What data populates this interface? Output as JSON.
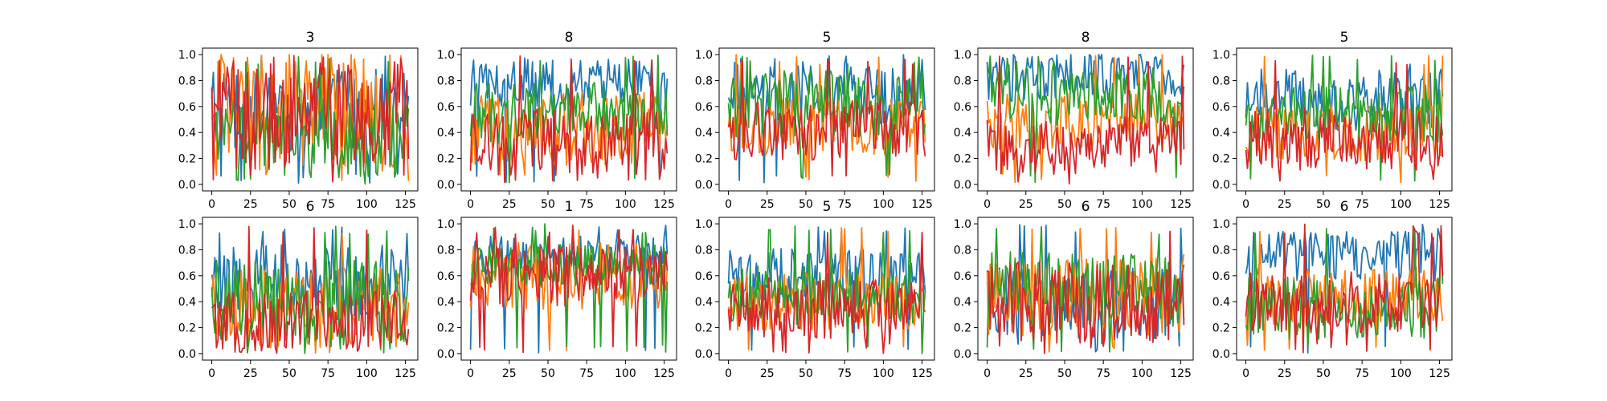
{
  "figure": {
    "background": "#ffffff",
    "panel_count": 10
  },
  "chart_data": [
    {
      "type": "line",
      "title": "3",
      "x_range": [
        0,
        127
      ],
      "xlim": [
        -6,
        133
      ],
      "ylim": [
        -0.05,
        1.05
      ],
      "xticks": [
        0,
        25,
        50,
        75,
        100,
        125
      ],
      "yticks": [
        0.0,
        0.2,
        0.4,
        0.6,
        0.8,
        1.0
      ],
      "ytick_labels": [
        "0.0",
        "0.2",
        "0.4",
        "0.6",
        "0.8",
        "1.0"
      ],
      "series_colors": [
        "#1f77b4",
        "#ff7f0e",
        "#2ca02c",
        "#d62728"
      ],
      "series_levels": [
        {
          "mean": 0.55,
          "spread": 0.22
        },
        {
          "mean": 0.55,
          "spread": 0.3
        },
        {
          "mean": 0.35,
          "spread": 0.2
        },
        {
          "mean": 0.52,
          "spread": 0.26
        }
      ],
      "grid": false,
      "legend": "none"
    },
    {
      "type": "line",
      "title": "8",
      "x_range": [
        0,
        127
      ],
      "xlim": [
        -6,
        133
      ],
      "ylim": [
        -0.05,
        1.05
      ],
      "xticks": [
        0,
        25,
        50,
        75,
        100,
        125
      ],
      "yticks": [
        0.0,
        0.2,
        0.4,
        0.6,
        0.8,
        1.0
      ],
      "ytick_labels": [
        "0.0",
        "0.2",
        "0.4",
        "0.6",
        "0.8",
        "1.0"
      ],
      "series_colors": [
        "#1f77b4",
        "#ff7f0e",
        "#2ca02c",
        "#d62728"
      ],
      "series_levels": [
        {
          "mean": 0.78,
          "spread": 0.12
        },
        {
          "mean": 0.42,
          "spread": 0.18
        },
        {
          "mean": 0.55,
          "spread": 0.15
        },
        {
          "mean": 0.3,
          "spread": 0.18
        }
      ],
      "grid": false,
      "legend": "none"
    },
    {
      "type": "line",
      "title": "5",
      "x_range": [
        0,
        127
      ],
      "xlim": [
        -6,
        133
      ],
      "ylim": [
        -0.05,
        1.05
      ],
      "xticks": [
        0,
        25,
        50,
        75,
        100,
        125
      ],
      "yticks": [
        0.0,
        0.2,
        0.4,
        0.6,
        0.8,
        1.0
      ],
      "ytick_labels": [
        "0.0",
        "0.2",
        "0.4",
        "0.6",
        "0.8",
        "1.0"
      ],
      "series_colors": [
        "#1f77b4",
        "#ff7f0e",
        "#2ca02c",
        "#d62728"
      ],
      "series_levels": [
        {
          "mean": 0.7,
          "spread": 0.15
        },
        {
          "mean": 0.45,
          "spread": 0.14
        },
        {
          "mean": 0.62,
          "spread": 0.16
        },
        {
          "mean": 0.42,
          "spread": 0.15
        }
      ],
      "grid": false,
      "legend": "none"
    },
    {
      "type": "line",
      "title": "8",
      "x_range": [
        0,
        127
      ],
      "xlim": [
        -6,
        133
      ],
      "ylim": [
        -0.05,
        1.05
      ],
      "xticks": [
        0,
        25,
        50,
        75,
        100,
        125
      ],
      "yticks": [
        0.0,
        0.2,
        0.4,
        0.6,
        0.8,
        1.0
      ],
      "ytick_labels": [
        "0.0",
        "0.2",
        "0.4",
        "0.6",
        "0.8",
        "1.0"
      ],
      "series_colors": [
        "#1f77b4",
        "#ff7f0e",
        "#2ca02c",
        "#d62728"
      ],
      "series_levels": [
        {
          "mean": 0.82,
          "spread": 0.12
        },
        {
          "mean": 0.48,
          "spread": 0.14
        },
        {
          "mean": 0.68,
          "spread": 0.14
        },
        {
          "mean": 0.3,
          "spread": 0.14
        }
      ],
      "grid": false,
      "legend": "none"
    },
    {
      "type": "line",
      "title": "5",
      "x_range": [
        0,
        127
      ],
      "xlim": [
        -6,
        133
      ],
      "ylim": [
        -0.05,
        1.05
      ],
      "xticks": [
        0,
        25,
        50,
        75,
        100,
        125
      ],
      "yticks": [
        0.0,
        0.2,
        0.4,
        0.6,
        0.8,
        1.0
      ],
      "ytick_labels": [
        "0.0",
        "0.2",
        "0.4",
        "0.6",
        "0.8",
        "1.0"
      ],
      "series_colors": [
        "#1f77b4",
        "#ff7f0e",
        "#2ca02c",
        "#d62728"
      ],
      "series_levels": [
        {
          "mean": 0.65,
          "spread": 0.15
        },
        {
          "mean": 0.4,
          "spread": 0.14
        },
        {
          "mean": 0.55,
          "spread": 0.14
        },
        {
          "mean": 0.35,
          "spread": 0.15
        }
      ],
      "grid": false,
      "legend": "none"
    },
    {
      "type": "line",
      "title": "6",
      "x_range": [
        0,
        127
      ],
      "xlim": [
        -6,
        133
      ],
      "ylim": [
        -0.05,
        1.05
      ],
      "xticks": [
        0,
        25,
        50,
        75,
        100,
        125
      ],
      "yticks": [
        0.0,
        0.2,
        0.4,
        0.6,
        0.8,
        1.0
      ],
      "ytick_labels": [
        "0.0",
        "0.2",
        "0.4",
        "0.6",
        "0.8",
        "1.0"
      ],
      "series_colors": [
        "#1f77b4",
        "#ff7f0e",
        "#2ca02c",
        "#d62728"
      ],
      "series_levels": [
        {
          "mean": 0.55,
          "spread": 0.18
        },
        {
          "mean": 0.35,
          "spread": 0.2
        },
        {
          "mean": 0.4,
          "spread": 0.2
        },
        {
          "mean": 0.25,
          "spread": 0.15
        }
      ],
      "grid": false,
      "legend": "none"
    },
    {
      "type": "line",
      "title": "1",
      "x_range": [
        0,
        127
      ],
      "xlim": [
        -6,
        133
      ],
      "ylim": [
        -0.05,
        1.05
      ],
      "xticks": [
        0,
        25,
        50,
        75,
        100,
        125
      ],
      "yticks": [
        0.0,
        0.2,
        0.4,
        0.6,
        0.8,
        1.0
      ],
      "ytick_labels": [
        "0.0",
        "0.2",
        "0.4",
        "0.6",
        "0.8",
        "1.0"
      ],
      "series_colors": [
        "#1f77b4",
        "#ff7f0e",
        "#2ca02c",
        "#d62728"
      ],
      "series_levels": [
        {
          "mean": 0.75,
          "spread": 0.1
        },
        {
          "mean": 0.6,
          "spread": 0.16
        },
        {
          "mean": 0.68,
          "spread": 0.1
        },
        {
          "mean": 0.6,
          "spread": 0.15
        }
      ],
      "grid": false,
      "legend": "none"
    },
    {
      "type": "line",
      "title": "5",
      "x_range": [
        0,
        127
      ],
      "xlim": [
        -6,
        133
      ],
      "ylim": [
        -0.05,
        1.05
      ],
      "xticks": [
        0,
        25,
        50,
        75,
        100,
        125
      ],
      "yticks": [
        0.0,
        0.2,
        0.4,
        0.6,
        0.8,
        1.0
      ],
      "ytick_labels": [
        "0.0",
        "0.2",
        "0.4",
        "0.6",
        "0.8",
        "1.0"
      ],
      "series_colors": [
        "#1f77b4",
        "#ff7f0e",
        "#2ca02c",
        "#d62728"
      ],
      "series_levels": [
        {
          "mean": 0.6,
          "spread": 0.15
        },
        {
          "mean": 0.4,
          "spread": 0.14
        },
        {
          "mean": 0.45,
          "spread": 0.14
        },
        {
          "mean": 0.35,
          "spread": 0.15
        }
      ],
      "grid": false,
      "legend": "none"
    },
    {
      "type": "line",
      "title": "6",
      "x_range": [
        0,
        127
      ],
      "xlim": [
        -6,
        133
      ],
      "ylim": [
        -0.05,
        1.05
      ],
      "xticks": [
        0,
        25,
        50,
        75,
        100,
        125
      ],
      "yticks": [
        0.0,
        0.2,
        0.4,
        0.6,
        0.8,
        1.0
      ],
      "ytick_labels": [
        "0.0",
        "0.2",
        "0.4",
        "0.6",
        "0.8",
        "1.0"
      ],
      "series_colors": [
        "#1f77b4",
        "#ff7f0e",
        "#2ca02c",
        "#d62728"
      ],
      "series_levels": [
        {
          "mean": 0.4,
          "spread": 0.18
        },
        {
          "mean": 0.45,
          "spread": 0.2
        },
        {
          "mean": 0.5,
          "spread": 0.18
        },
        {
          "mean": 0.4,
          "spread": 0.2
        }
      ],
      "grid": false,
      "legend": "none"
    },
    {
      "type": "line",
      "title": "6",
      "x_range": [
        0,
        127
      ],
      "xlim": [
        -6,
        133
      ],
      "ylim": [
        -0.05,
        1.05
      ],
      "xticks": [
        0,
        25,
        50,
        75,
        100,
        125
      ],
      "yticks": [
        0.0,
        0.2,
        0.4,
        0.6,
        0.8,
        1.0
      ],
      "ytick_labels": [
        "0.0",
        "0.2",
        "0.4",
        "0.6",
        "0.8",
        "1.0"
      ],
      "series_colors": [
        "#1f77b4",
        "#ff7f0e",
        "#2ca02c",
        "#d62728"
      ],
      "series_levels": [
        {
          "mean": 0.75,
          "spread": 0.12
        },
        {
          "mean": 0.45,
          "spread": 0.14
        },
        {
          "mean": 0.35,
          "spread": 0.15
        },
        {
          "mean": 0.4,
          "spread": 0.15
        }
      ],
      "grid": false,
      "legend": "none"
    }
  ]
}
